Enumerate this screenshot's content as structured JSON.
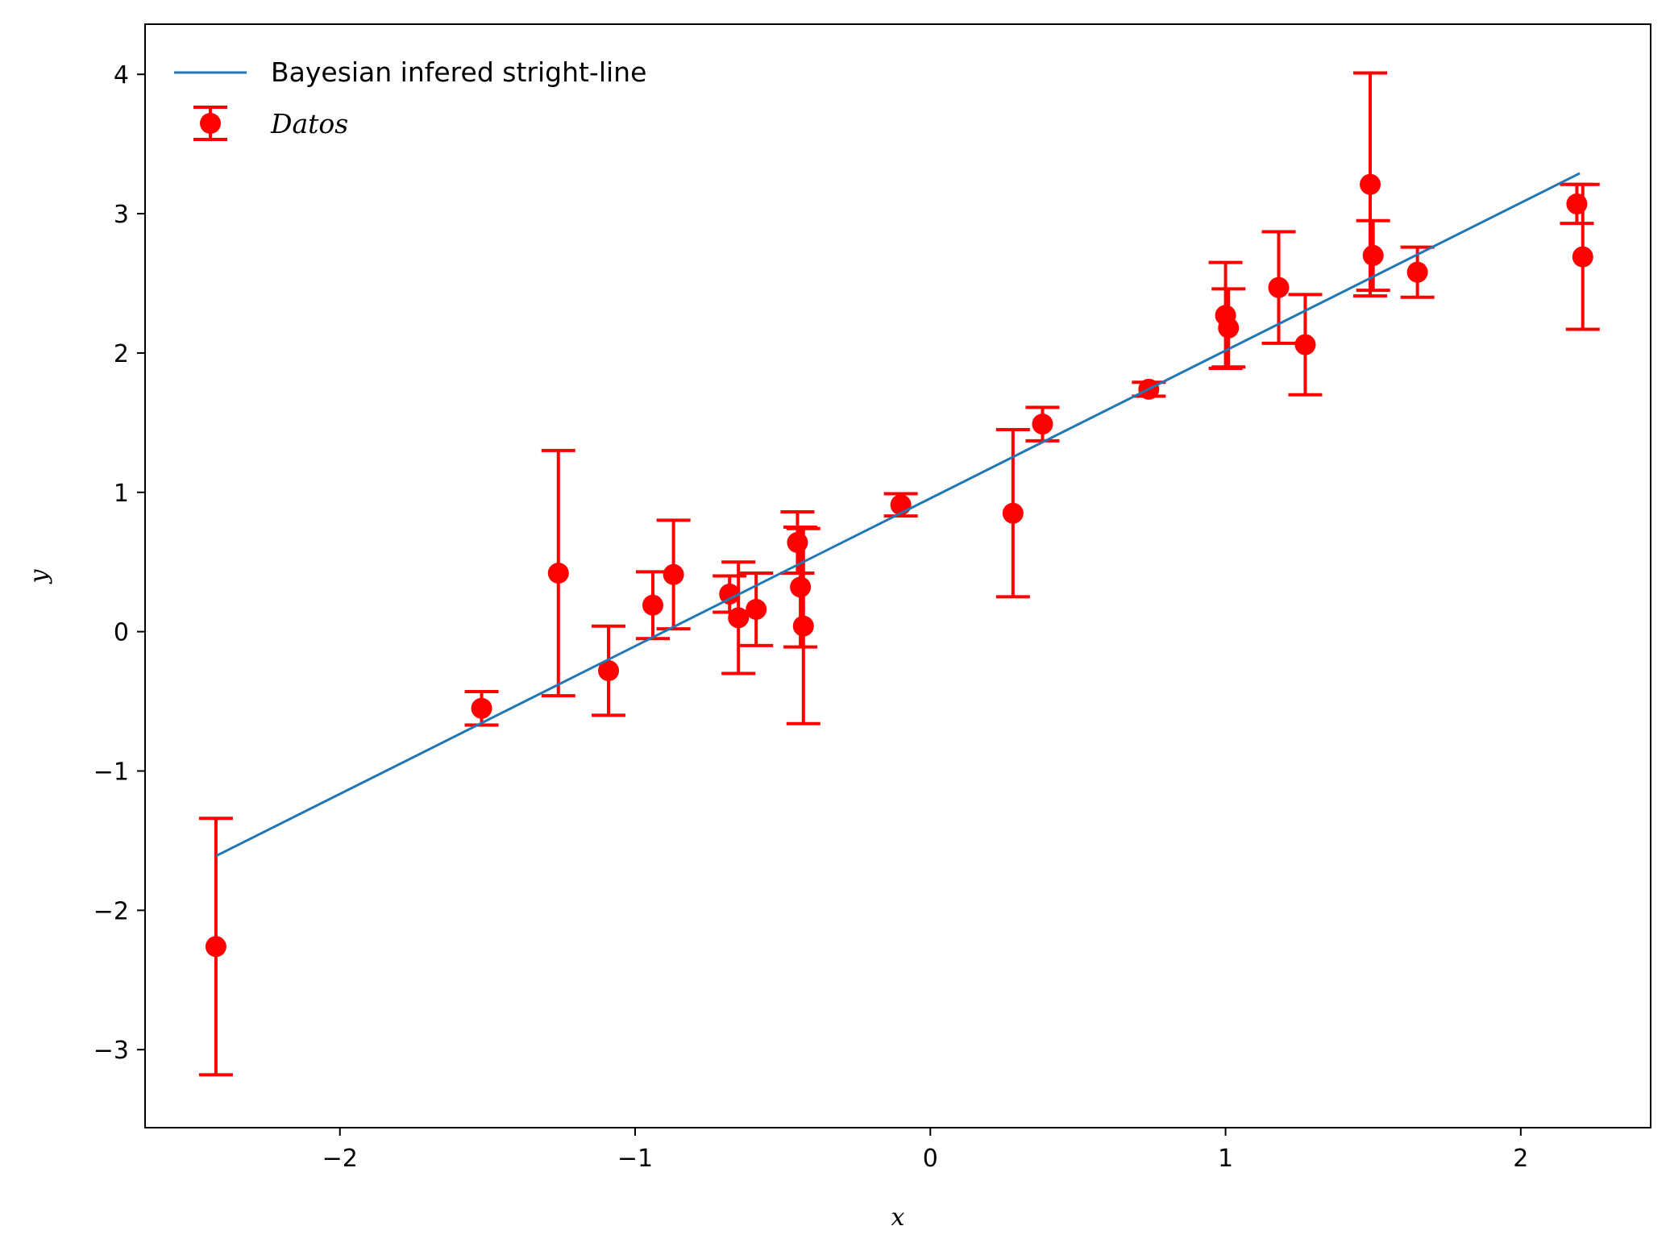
{
  "chart_data": {
    "type": "scatter",
    "xlabel": "x",
    "ylabel": "y",
    "xlim": [
      -2.66,
      2.44
    ],
    "ylim": [
      -3.56,
      4.36
    ],
    "xticks": [
      -2,
      -1,
      0,
      1,
      2
    ],
    "yticks": [
      -3,
      -2,
      -1,
      0,
      1,
      2,
      3,
      4
    ],
    "xtick_labels": [
      "−2",
      "−1",
      "0",
      "1",
      "2"
    ],
    "ytick_labels": [
      "−3",
      "−2",
      "−1",
      "0",
      "1",
      "2",
      "3",
      "4"
    ],
    "grid": false,
    "legend_position": "top-left",
    "colors": {
      "line": "#1f77b4",
      "points": "#ff0000",
      "axes": "#000000"
    },
    "line": {
      "name": "Bayesian infered stright-line",
      "x": [
        -2.42,
        2.2
      ],
      "y": [
        -1.61,
        3.29
      ]
    },
    "points": {
      "name": "Datos",
      "x": [
        -2.42,
        -1.52,
        -1.26,
        -1.09,
        -0.94,
        -0.87,
        -0.68,
        -0.65,
        -0.59,
        -0.45,
        -0.44,
        -0.43,
        -0.1,
        0.28,
        0.38,
        0.74,
        1.0,
        1.01,
        1.18,
        1.27,
        1.49,
        1.5,
        1.65,
        2.19,
        2.21
      ],
      "y": [
        -2.26,
        -0.55,
        0.42,
        -0.28,
        0.19,
        0.41,
        0.27,
        0.1,
        0.16,
        0.64,
        0.32,
        0.04,
        0.91,
        0.85,
        1.49,
        1.74,
        2.27,
        2.18,
        2.47,
        2.06,
        3.21,
        2.7,
        2.58,
        3.07,
        2.69
      ],
      "yerr": [
        0.92,
        0.12,
        0.88,
        0.32,
        0.24,
        0.39,
        0.13,
        0.4,
        0.26,
        0.22,
        0.43,
        0.7,
        0.08,
        0.6,
        0.12,
        0.05,
        0.38,
        0.28,
        0.4,
        0.36,
        0.8,
        0.25,
        0.18,
        0.14,
        0.52
      ]
    }
  }
}
